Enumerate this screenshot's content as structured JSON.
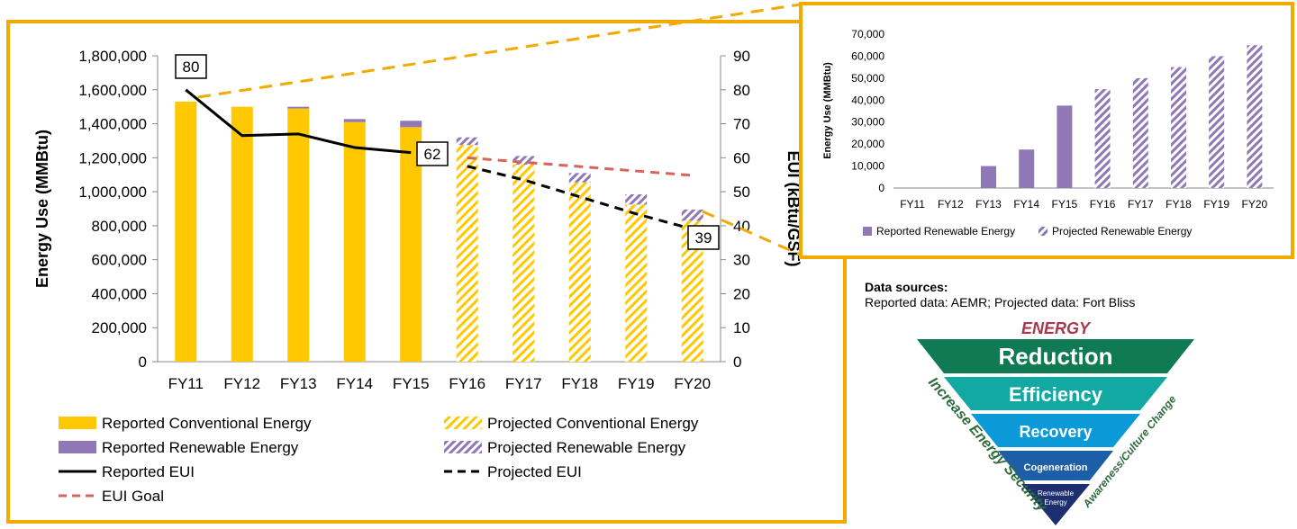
{
  "colors": {
    "frame": "#f2a900",
    "conventional": "#ffc800",
    "renewable": "#8f78b5",
    "reported_eui": "#000000",
    "projected_eui": "#000000",
    "eui_goal": "#d9635b",
    "pyramid_reduction": "#0f7a53",
    "pyramid_efficiency": "#12a9a3",
    "pyramid_recovery": "#0b9ad8",
    "pyramid_cogeneration": "#1c5fa8",
    "pyramid_renewable": "#1d2f6f",
    "pyramid_side_text": "#2e6b3c",
    "energy_label": "#a8384a"
  },
  "chart_data": [
    {
      "type": "bar",
      "categories": [
        "FY11",
        "FY12",
        "FY13",
        "FY14",
        "FY15",
        "FY16",
        "FY17",
        "FY18",
        "FY19",
        "FY20"
      ],
      "series": [
        {
          "name": "Reported Conventional Energy",
          "values": [
            1530000,
            1500000,
            1490000,
            1410000,
            1380000,
            null,
            null,
            null,
            null,
            null
          ]
        },
        {
          "name": "Reported Renewable Energy",
          "values": [
            0,
            0,
            10000,
            17500,
            37500,
            null,
            null,
            null,
            null,
            null
          ]
        },
        {
          "name": "Projected Conventional Energy",
          "values": [
            null,
            null,
            null,
            null,
            null,
            1275000,
            1160000,
            1055000,
            925000,
            830000
          ]
        },
        {
          "name": "Projected Renewable Energy",
          "values": [
            null,
            null,
            null,
            null,
            null,
            45000,
            50000,
            55000,
            60000,
            65000
          ]
        },
        {
          "name": "Reported EUI",
          "axis": "right",
          "values": [
            80,
            66.5,
            67,
            63,
            61.5,
            null,
            null,
            null,
            null,
            null
          ]
        },
        {
          "name": "Projected EUI",
          "axis": "right",
          "values": [
            null,
            null,
            null,
            null,
            null,
            57.5,
            53.5,
            48.5,
            43.5,
            39
          ]
        },
        {
          "name": "EUI Goal",
          "axis": "right",
          "values": [
            null,
            null,
            null,
            null,
            null,
            60,
            58.7,
            57.4,
            56.1,
            54.8
          ]
        }
      ],
      "ylabel": "Energy Use (MMBtu)",
      "ylabel_right": "EUI (kBtu/GSF)",
      "ylim": [
        0,
        1800000
      ],
      "ylim_right": [
        0,
        90
      ],
      "yticks": [
        "0",
        "200,000",
        "400,000",
        "600,000",
        "800,000",
        "1,000,000",
        "1,200,000",
        "1,400,000",
        "1,600,000",
        "1,800,000"
      ],
      "yticks_right": [
        "0",
        "10",
        "20",
        "30",
        "40",
        "50",
        "60",
        "70",
        "80",
        "90"
      ],
      "annotations": [
        {
          "text": "80",
          "category": "FY11"
        },
        {
          "text": "62",
          "category": "FY15"
        },
        {
          "text": "39",
          "category": "FY20"
        }
      ],
      "legend": [
        "Reported Conventional Energy",
        "Projected Conventional Energy",
        "Reported Renewable Energy",
        "Projected Renewable Energy",
        "Reported EUI",
        "Projected EUI",
        "EUI Goal"
      ],
      "legend_position": "bottom",
      "grid": false
    },
    {
      "type": "bar",
      "categories": [
        "FY11",
        "FY12",
        "FY13",
        "FY14",
        "FY15",
        "FY16",
        "FY17",
        "FY18",
        "FY19",
        "FY20"
      ],
      "series": [
        {
          "name": "Reported Renewable Energy",
          "values": [
            0,
            0,
            10000,
            17500,
            37500,
            null,
            null,
            null,
            null,
            null
          ]
        },
        {
          "name": "Projected Renewable Energy",
          "values": [
            null,
            null,
            null,
            null,
            null,
            45000,
            50000,
            55000,
            60000,
            65000
          ]
        }
      ],
      "ylabel": "Energy Use (MMBtu)",
      "ylim": [
        0,
        70000
      ],
      "yticks": [
        "0",
        "10,000",
        "20,000",
        "30,000",
        "40,000",
        "50,000",
        "60,000",
        "70,000"
      ],
      "legend_position": "bottom",
      "grid": false
    }
  ],
  "sources": {
    "heading": "Data sources:",
    "text": "Reported data: AEMR; Projected data: Fort Bliss"
  },
  "pyramid": {
    "top_label": "ENERGY",
    "levels": [
      "Reduction",
      "Efficiency",
      "Recovery",
      "Cogeneration"
    ],
    "tip_line1": "Renewable",
    "tip_line2": "Energy",
    "left_side_text": "Increase Energy Security",
    "right_side_text": "Awareness/Culture Change"
  }
}
